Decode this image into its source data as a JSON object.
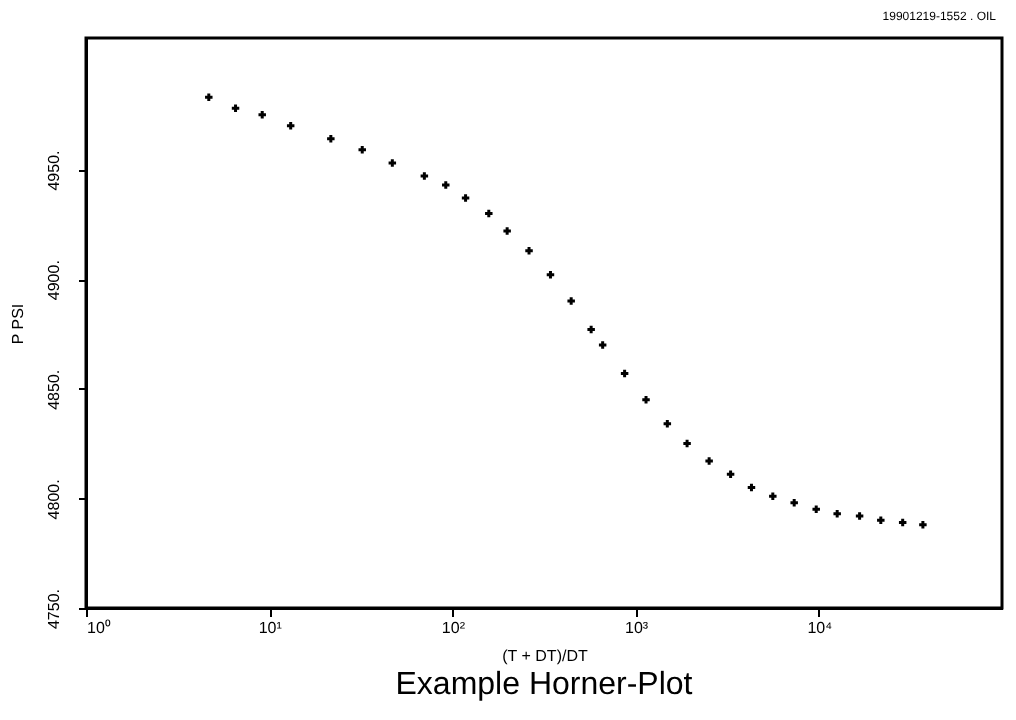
{
  "chart_data": {
    "type": "scatter",
    "title": "Example Horner-Plot",
    "xlabel": "(T + DT)/DT",
    "ylabel": "P PSI",
    "annotations": [
      "19901219-1552 . OIL"
    ],
    "x": [
      4.68,
      6.55,
      9.16,
      13.1,
      21.7,
      32.2,
      47,
      70.3,
      92,
      118,
      158,
      199,
      262,
      343,
      445,
      572,
      661,
      871,
      1140,
      1490,
      1910,
      2520,
      3300,
      4290,
      5610,
      7340,
      9680,
      12600,
      16700,
      21800,
      28700,
      37000
    ],
    "values": [
      4983,
      4978,
      4975,
      4970,
      4964,
      4959,
      4953,
      4947,
      4943,
      4937,
      4930,
      4922,
      4913,
      4902,
      4890,
      4877,
      4870,
      4857,
      4845,
      4834,
      4825,
      4817,
      4811,
      4805,
      4801,
      4798,
      4795,
      4793,
      4792,
      4790,
      4789,
      4788
    ],
    "color": "#000000",
    "marker": "cross",
    "log": "x",
    "grid": false,
    "xlim": [
      1,
      100000
    ],
    "xticks": [
      {
        "value": 1,
        "label": "10⁰"
      },
      {
        "value": 10,
        "label": "10¹"
      },
      {
        "value": 100,
        "label": "10²"
      },
      {
        "value": 1000,
        "label": "10³"
      },
      {
        "value": 10000,
        "label": "10⁴"
      }
    ],
    "ylim": [
      4750,
      5010
    ],
    "yticks": [
      {
        "value": 4750,
        "label": "4750."
      },
      {
        "value": 4800,
        "label": "4800."
      },
      {
        "value": 4850,
        "label": "4850."
      },
      {
        "value": 4900,
        "label": "4900."
      },
      {
        "value": 4950,
        "label": "4950."
      }
    ]
  }
}
